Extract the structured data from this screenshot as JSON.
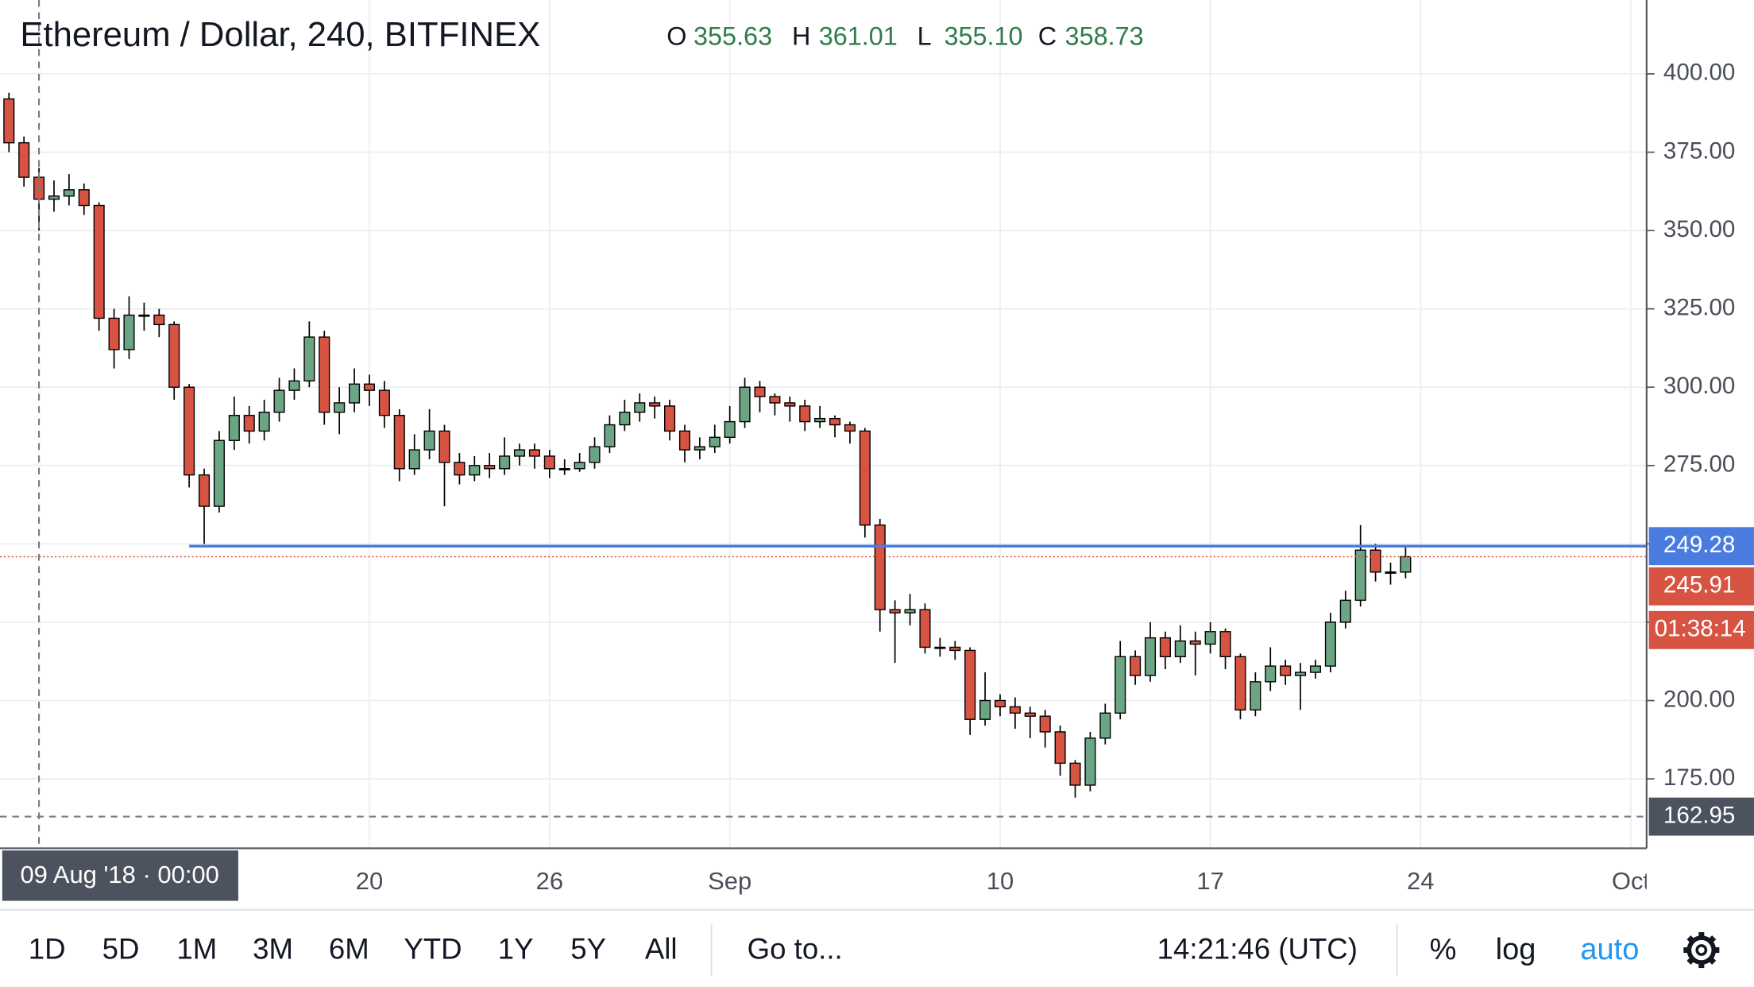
{
  "chart_data": {
    "type": "candlestick",
    "title": "Ethereum / Dollar, 240, BITFINEX",
    "ohlc_legend": [
      {
        "key": "O",
        "value": "355.63"
      },
      {
        "key": "H",
        "value": "361.01"
      },
      {
        "key": "L",
        "value": "355.10"
      },
      {
        "key": "C",
        "value": "358.73"
      }
    ],
    "up_color": "#6ba583",
    "down_color": "#d75442",
    "border_color": "#000000",
    "categories": [
      null,
      null,
      null,
      null,
      null,
      null,
      null,
      null,
      null,
      null,
      null,
      null,
      null,
      null,
      null,
      null,
      null,
      null,
      null,
      null,
      null,
      null,
      null,
      null,
      "20",
      null,
      null,
      null,
      null,
      null,
      null,
      null,
      null,
      null,
      null,
      null,
      "26",
      null,
      null,
      null,
      null,
      null,
      null,
      null,
      null,
      null,
      null,
      null,
      "Sep",
      null,
      null,
      null,
      null,
      null,
      null,
      null,
      null,
      null,
      null,
      null,
      null,
      null,
      null,
      null,
      null,
      null,
      "10",
      null,
      null,
      null,
      null,
      null,
      null,
      null,
      null,
      null,
      null,
      null,
      null,
      null,
      "17",
      null,
      null,
      null,
      null,
      null,
      null,
      null,
      null,
      null,
      null,
      null,
      null,
      null,
      "24",
      null,
      null,
      null,
      null,
      null,
      null,
      null,
      null,
      null,
      null,
      null,
      null,
      null,
      "Oct"
    ],
    "open": [
      392,
      378,
      367,
      360,
      361,
      363,
      358,
      322,
      312,
      323,
      323,
      320,
      300,
      272,
      262,
      283,
      291,
      286,
      292,
      299,
      302,
      316,
      292,
      295,
      301,
      299,
      291,
      274,
      280,
      286,
      276,
      272,
      275,
      274,
      278,
      280,
      278,
      274,
      274,
      276,
      281,
      288,
      292,
      295,
      294,
      286,
      280,
      281,
      284,
      289,
      300,
      297,
      295,
      294,
      289,
      290,
      288,
      286,
      256,
      229,
      228,
      229,
      217,
      217,
      216,
      194,
      200,
      198,
      196,
      195,
      190,
      180,
      173,
      188,
      196,
      214,
      208,
      220,
      214,
      219,
      218,
      222,
      214,
      197,
      206,
      211,
      208,
      209,
      211,
      225,
      232,
      248,
      241,
      241,
      null,
      null,
      null,
      null,
      null,
      null,
      null,
      null,
      null,
      null,
      null,
      null,
      null,
      null,
      null
    ],
    "high": [
      394,
      380,
      370,
      366,
      368,
      365,
      359,
      325,
      329,
      327,
      325,
      321,
      301,
      274,
      286,
      297,
      294,
      296,
      303,
      306,
      321,
      318,
      300,
      306,
      304,
      302,
      293,
      285,
      293,
      288,
      279,
      278,
      279,
      284,
      282,
      282,
      280,
      277,
      279,
      284,
      291,
      296,
      298,
      297,
      296,
      288,
      284,
      288,
      294,
      303,
      302,
      298,
      297,
      296,
      294,
      291,
      289,
      287,
      258,
      232,
      234,
      231,
      220,
      219,
      217,
      209,
      202,
      201,
      198,
      197,
      192,
      181,
      190,
      199,
      219,
      216,
      225,
      222,
      224,
      222,
      225,
      223,
      215,
      209,
      217,
      213,
      212,
      213,
      228,
      235,
      256,
      250,
      244,
      249,
      null,
      null,
      null,
      null,
      null,
      null,
      null,
      null,
      null,
      null,
      null,
      null,
      null,
      null,
      null
    ],
    "low": [
      375,
      364,
      350,
      356,
      358,
      355,
      318,
      306,
      309,
      318,
      316,
      296,
      268,
      250,
      260,
      280,
      282,
      283,
      289,
      296,
      300,
      288,
      285,
      292,
      294,
      287,
      270,
      272,
      277,
      262,
      269,
      270,
      271,
      272,
      275,
      274,
      271,
      272,
      273,
      274,
      279,
      286,
      289,
      290,
      283,
      276,
      277,
      279,
      282,
      287,
      292,
      291,
      289,
      286,
      287,
      284,
      282,
      252,
      222,
      212,
      224,
      215,
      214,
      213,
      189,
      192,
      195,
      191,
      188,
      185,
      176,
      169,
      171,
      186,
      194,
      205,
      206,
      210,
      212,
      208,
      215,
      210,
      194,
      195,
      203,
      205,
      197,
      207,
      209,
      223,
      230,
      238,
      237,
      239,
      null,
      null,
      null,
      null,
      null,
      null,
      null,
      null,
      null,
      null,
      null,
      null,
      null,
      null,
      null
    ],
    "close": [
      378,
      367,
      360,
      361,
      363,
      358,
      322,
      312,
      323,
      323,
      320,
      300,
      272,
      262,
      283,
      291,
      286,
      292,
      299,
      302,
      316,
      292,
      295,
      301,
      299,
      291,
      274,
      280,
      286,
      276,
      272,
      275,
      274,
      278,
      280,
      278,
      274,
      274,
      276,
      281,
      288,
      292,
      295,
      294,
      286,
      280,
      281,
      284,
      289,
      300,
      297,
      295,
      294,
      289,
      290,
      288,
      286,
      256,
      229,
      228,
      229,
      217,
      217,
      216,
      194,
      200,
      198,
      196,
      195,
      190,
      180,
      173,
      188,
      196,
      214,
      208,
      220,
      214,
      219,
      218,
      222,
      214,
      197,
      206,
      211,
      208,
      209,
      211,
      225,
      232,
      248,
      241,
      241,
      245.91,
      null,
      null,
      null,
      null,
      null,
      null,
      null,
      null,
      null,
      null,
      null,
      null,
      null,
      null,
      null
    ],
    "ylim": [
      152.86,
      423.57
    ],
    "yticks": [
      {
        "value": 175,
        "label": "175.00"
      },
      {
        "value": 200,
        "label": "200.00"
      },
      {
        "value": 225,
        "label": ""
      },
      {
        "value": 250,
        "label": ""
      },
      {
        "value": 275,
        "label": "275.00"
      },
      {
        "value": 300,
        "label": "300.00"
      },
      {
        "value": 325,
        "label": "325.00"
      },
      {
        "value": 350,
        "label": "350.00"
      },
      {
        "value": 375,
        "label": "375.00"
      },
      {
        "value": 400,
        "label": "400.00"
      }
    ],
    "grid": true,
    "price_lines": [
      {
        "value": 249.28,
        "color": "#4a7ce0",
        "style": "solid"
      },
      {
        "value": 245.91,
        "color": "#d75442",
        "style": "dotted"
      }
    ],
    "countdown": "01:38:14",
    "crosshair": {
      "label": "09 Aug '18 · 00:00",
      "category": 2,
      "price": 162.95
    }
  },
  "toolbar": {
    "ranges": [
      "1D",
      "5D",
      "1M",
      "3M",
      "6M",
      "YTD",
      "1Y",
      "5Y",
      "All"
    ],
    "goto": "Go to...",
    "clock": "14:21:46 (UTC)",
    "options": [
      "%",
      "log",
      "auto"
    ]
  }
}
